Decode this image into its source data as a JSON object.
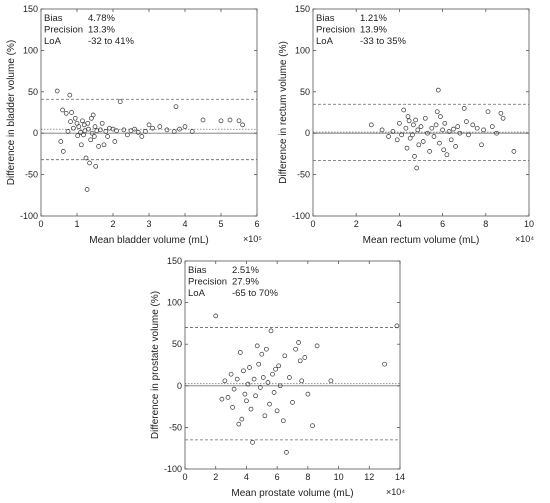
{
  "chart_data": [
    {
      "type": "scatter",
      "xlabel": "Mean bladder volume (mL)",
      "ylabel": "Difference in bladder volume (%)",
      "x_exponent_label": "×10⁵",
      "xlim": [
        0,
        6
      ],
      "ylim": [
        -100,
        150
      ],
      "xticks": [
        "0",
        "1",
        "2",
        "3",
        "4",
        "5",
        "6"
      ],
      "yticks": [
        "-100",
        "-50",
        "0",
        "50",
        "100",
        "150"
      ],
      "stats": [
        {
          "label": "Bias",
          "value": "4.78%"
        },
        {
          "label": "Precision",
          "value": "13.3%"
        },
        {
          "label": "LoA",
          "value": "-32 to 41%"
        }
      ],
      "lines": {
        "zero": 0,
        "bias": 4.78,
        "loa": [
          -32,
          41
        ]
      },
      "points": [
        [
          0.45,
          51
        ],
        [
          0.55,
          -10
        ],
        [
          0.6,
          28
        ],
        [
          0.62,
          -22
        ],
        [
          0.7,
          24
        ],
        [
          0.75,
          2
        ],
        [
          0.8,
          46
        ],
        [
          0.82,
          14
        ],
        [
          0.85,
          25
        ],
        [
          0.9,
          6
        ],
        [
          0.95,
          18
        ],
        [
          1.0,
          12
        ],
        [
          1.02,
          -3
        ],
        [
          1.05,
          8
        ],
        [
          1.1,
          1
        ],
        [
          1.12,
          -14
        ],
        [
          1.15,
          15
        ],
        [
          1.18,
          -2
        ],
        [
          1.2,
          10
        ],
        [
          1.22,
          3
        ],
        [
          1.25,
          -30
        ],
        [
          1.28,
          -68
        ],
        [
          1.3,
          12
        ],
        [
          1.32,
          5
        ],
        [
          1.35,
          -36
        ],
        [
          1.38,
          -8
        ],
        [
          1.4,
          18
        ],
        [
          1.42,
          0
        ],
        [
          1.45,
          22
        ],
        [
          1.48,
          -4
        ],
        [
          1.5,
          8
        ],
        [
          1.52,
          -40
        ],
        [
          1.55,
          3
        ],
        [
          1.6,
          -16
        ],
        [
          1.65,
          4
        ],
        [
          1.7,
          12
        ],
        [
          1.75,
          -14
        ],
        [
          1.8,
          2
        ],
        [
          1.85,
          -4
        ],
        [
          1.9,
          6
        ],
        [
          2.0,
          5
        ],
        [
          2.05,
          -10
        ],
        [
          2.1,
          3
        ],
        [
          2.2,
          38
        ],
        [
          2.3,
          4
        ],
        [
          2.4,
          -2
        ],
        [
          2.5,
          3
        ],
        [
          2.6,
          5
        ],
        [
          2.7,
          1
        ],
        [
          2.8,
          -4
        ],
        [
          2.9,
          2
        ],
        [
          3.0,
          10
        ],
        [
          3.1,
          6
        ],
        [
          3.3,
          8
        ],
        [
          3.5,
          4
        ],
        [
          3.7,
          2
        ],
        [
          3.75,
          32
        ],
        [
          3.85,
          5
        ],
        [
          4.0,
          8
        ],
        [
          4.2,
          2
        ],
        [
          4.5,
          16
        ],
        [
          5.0,
          15
        ],
        [
          5.25,
          16
        ],
        [
          5.5,
          15
        ],
        [
          5.6,
          10
        ]
      ]
    },
    {
      "type": "scatter",
      "xlabel": "Mean rectum volume (mL)",
      "ylabel": "Difference in rectum volume (%)",
      "x_exponent_label": "×10⁴",
      "xlim": [
        0,
        10
      ],
      "ylim": [
        -100,
        150
      ],
      "xticks": [
        "0",
        "2",
        "4",
        "6",
        "8",
        "10"
      ],
      "yticks": [
        "-100",
        "-50",
        "0",
        "50",
        "100",
        "150"
      ],
      "stats": [
        {
          "label": "Bias",
          "value": "1.21%"
        },
        {
          "label": "Precision",
          "value": "13.9%"
        },
        {
          "label": "LoA",
          "value": "-33 to 35%"
        }
      ],
      "lines": {
        "zero": 0,
        "bias": 1.21,
        "loa": [
          -33,
          35
        ]
      },
      "points": [
        [
          2.7,
          10
        ],
        [
          3.2,
          4
        ],
        [
          3.5,
          -4
        ],
        [
          3.7,
          2
        ],
        [
          3.9,
          -8
        ],
        [
          4.0,
          12
        ],
        [
          4.1,
          -2
        ],
        [
          4.2,
          28
        ],
        [
          4.3,
          6
        ],
        [
          4.35,
          -18
        ],
        [
          4.4,
          20
        ],
        [
          4.45,
          15
        ],
        [
          4.5,
          -6
        ],
        [
          4.6,
          -2
        ],
        [
          4.65,
          10
        ],
        [
          4.7,
          -28
        ],
        [
          4.75,
          16
        ],
        [
          4.8,
          -42
        ],
        [
          4.85,
          4
        ],
        [
          4.9,
          -14
        ],
        [
          5.0,
          8
        ],
        [
          5.1,
          -10
        ],
        [
          5.2,
          18
        ],
        [
          5.3,
          0
        ],
        [
          5.4,
          -22
        ],
        [
          5.5,
          6
        ],
        [
          5.6,
          -4
        ],
        [
          5.7,
          10
        ],
        [
          5.75,
          26
        ],
        [
          5.8,
          52
        ],
        [
          5.85,
          -12
        ],
        [
          5.9,
          20
        ],
        [
          6.0,
          4
        ],
        [
          6.05,
          -20
        ],
        [
          6.1,
          12
        ],
        [
          6.2,
          -26
        ],
        [
          6.3,
          2
        ],
        [
          6.4,
          -8
        ],
        [
          6.5,
          5
        ],
        [
          6.6,
          -16
        ],
        [
          6.7,
          8
        ],
        [
          6.8,
          0
        ],
        [
          7.0,
          30
        ],
        [
          7.1,
          14
        ],
        [
          7.2,
          -2
        ],
        [
          7.4,
          10
        ],
        [
          7.6,
          6
        ],
        [
          7.8,
          -14
        ],
        [
          7.9,
          4
        ],
        [
          8.1,
          26
        ],
        [
          8.3,
          8
        ],
        [
          8.5,
          0
        ],
        [
          8.7,
          24
        ],
        [
          8.8,
          18
        ],
        [
          9.3,
          -22
        ]
      ]
    },
    {
      "type": "scatter",
      "xlabel": "Mean prostate volume (mL)",
      "ylabel": "Difference in prostate volume (%)",
      "x_exponent_label": "×10⁴",
      "xlim": [
        0,
        14
      ],
      "ylim": [
        -100,
        150
      ],
      "xticks": [
        "0",
        "2",
        "4",
        "6",
        "8",
        "10",
        "12",
        "14"
      ],
      "yticks": [
        "-100",
        "-50",
        "0",
        "50",
        "100",
        "150"
      ],
      "stats": [
        {
          "label": "Bias",
          "value": "2.51%"
        },
        {
          "label": "Precision",
          "value": "27.9%"
        },
        {
          "label": "LoA",
          "value": "-65 to 70%"
        }
      ],
      "lines": {
        "zero": 0,
        "bias": 2.51,
        "loa": [
          -65,
          70
        ]
      },
      "points": [
        [
          2.0,
          84
        ],
        [
          2.4,
          -16
        ],
        [
          2.6,
          6
        ],
        [
          2.8,
          -14
        ],
        [
          3.0,
          14
        ],
        [
          3.1,
          -26
        ],
        [
          3.2,
          -4
        ],
        [
          3.4,
          8
        ],
        [
          3.5,
          -46
        ],
        [
          3.6,
          40
        ],
        [
          3.7,
          -40
        ],
        [
          3.8,
          18
        ],
        [
          3.9,
          -10
        ],
        [
          4.0,
          -18
        ],
        [
          4.1,
          2
        ],
        [
          4.2,
          22
        ],
        [
          4.3,
          -28
        ],
        [
          4.4,
          -68
        ],
        [
          4.5,
          8
        ],
        [
          4.6,
          -12
        ],
        [
          4.7,
          48
        ],
        [
          4.8,
          26
        ],
        [
          4.9,
          -2
        ],
        [
          5.0,
          38
        ],
        [
          5.1,
          10
        ],
        [
          5.2,
          -36
        ],
        [
          5.3,
          44
        ],
        [
          5.4,
          4
        ],
        [
          5.5,
          -22
        ],
        [
          5.6,
          66
        ],
        [
          5.7,
          14
        ],
        [
          5.8,
          -8
        ],
        [
          5.9,
          20
        ],
        [
          6.0,
          -30
        ],
        [
          6.1,
          24
        ],
        [
          6.2,
          0
        ],
        [
          6.4,
          -42
        ],
        [
          6.5,
          36
        ],
        [
          6.6,
          -80
        ],
        [
          6.8,
          10
        ],
        [
          7.0,
          -20
        ],
        [
          7.2,
          44
        ],
        [
          7.4,
          52
        ],
        [
          7.5,
          30
        ],
        [
          7.6,
          6
        ],
        [
          7.8,
          34
        ],
        [
          8.0,
          -10
        ],
        [
          8.3,
          -48
        ],
        [
          8.6,
          48
        ],
        [
          9.5,
          6
        ],
        [
          13.0,
          26
        ],
        [
          13.8,
          72
        ]
      ]
    }
  ]
}
